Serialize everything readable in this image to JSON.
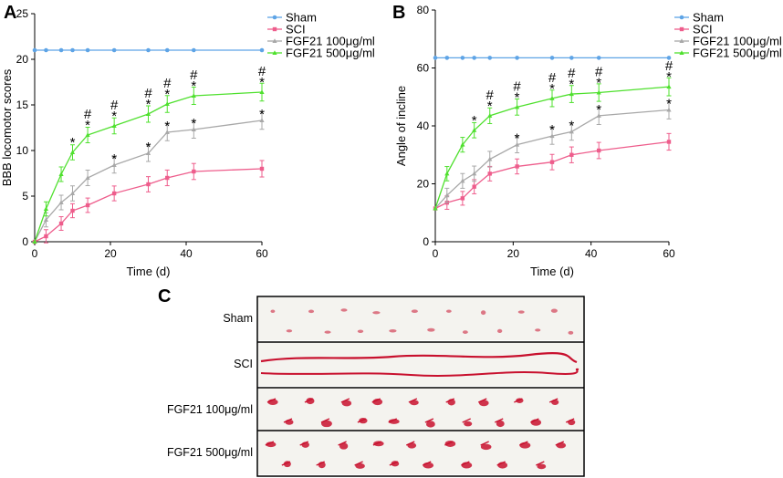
{
  "chart_data": [
    {
      "type": "line",
      "panel": "A",
      "ylabel": "BBB locomotor scores",
      "xlabel": "Time (d)",
      "xlim": [
        0,
        60
      ],
      "ylim": [
        0,
        25
      ],
      "xticks": [
        0,
        20,
        40,
        60
      ],
      "yticks": [
        0,
        5,
        10,
        15,
        20,
        25
      ],
      "legend": [
        "Sham",
        "SCI",
        "FGF21 100μg/ml",
        "FGF21 500μg/ml"
      ],
      "x": [
        0,
        3,
        7,
        10,
        14,
        21,
        30,
        35,
        42,
        60
      ],
      "series": [
        {
          "name": "Sham",
          "color": "#5ea4e6",
          "values": [
            21,
            21,
            21,
            21,
            21,
            21,
            21,
            21,
            21,
            21
          ]
        },
        {
          "name": "SCI",
          "color": "#ee5d8c",
          "values": [
            0,
            0.6,
            2.0,
            3.4,
            4.0,
            5.3,
            6.3,
            7.0,
            7.7,
            8.0
          ]
        },
        {
          "name": "FGF21 100μg/ml",
          "color": "#a8a8a8",
          "values": [
            0,
            2.4,
            4.3,
            5.3,
            7.0,
            8.4,
            9.7,
            12.0,
            12.3,
            13.3
          ]
        },
        {
          "name": "FGF21 500μg/ml",
          "color": "#4fe02e",
          "values": [
            0,
            3.6,
            7.4,
            9.8,
            11.7,
            12.7,
            14.0,
            15.1,
            16.0,
            16.4
          ]
        }
      ],
      "annotations": [
        {
          "x": 10,
          "labels": [
            "*"
          ]
        },
        {
          "x": 14,
          "labels": [
            "#",
            "*"
          ]
        },
        {
          "x": 21,
          "labels": [
            "#",
            "*"
          ],
          "low_labels": [
            "*"
          ]
        },
        {
          "x": 30,
          "labels": [
            "#",
            "*"
          ],
          "low_labels": [
            "*"
          ]
        },
        {
          "x": 35,
          "labels": [
            "#",
            "*"
          ],
          "low_labels": [
            "*"
          ]
        },
        {
          "x": 42,
          "labels": [
            "#",
            "*"
          ],
          "low_labels": [
            "*"
          ]
        },
        {
          "x": 60,
          "labels": [
            "#",
            "*"
          ],
          "low_labels": [
            "*"
          ]
        }
      ]
    },
    {
      "type": "line",
      "panel": "B",
      "ylabel": "Angle of incline",
      "xlabel": "Time (d)",
      "xlim": [
        0,
        60
      ],
      "ylim": [
        0,
        80
      ],
      "xticks": [
        0,
        20,
        40,
        60
      ],
      "yticks": [
        0,
        20,
        40,
        60,
        80
      ],
      "legend": [
        "Sham",
        "SCI",
        "FGF21 100μg/ml",
        "FGF21 500μg/ml"
      ],
      "x": [
        0,
        3,
        7,
        10,
        14,
        21,
        30,
        35,
        42,
        60
      ],
      "series": [
        {
          "name": "Sham",
          "color": "#5ea4e6",
          "values": [
            63.5,
            63.5,
            63.5,
            63.5,
            63.5,
            63.5,
            63.5,
            63.5,
            63.5,
            63.5
          ]
        },
        {
          "name": "SCI",
          "color": "#ee5d8c",
          "values": [
            11.5,
            13.5,
            15.0,
            19.0,
            23.5,
            26.0,
            27.5,
            30.0,
            31.5,
            34.5
          ]
        },
        {
          "name": "FGF21 100μg/ml",
          "color": "#a8a8a8",
          "values": [
            11.5,
            16.0,
            21.0,
            23.5,
            28.5,
            33.5,
            36.5,
            38.0,
            43.5,
            45.5
          ]
        },
        {
          "name": "FGF21 500μg/ml",
          "color": "#4fe02e",
          "values": [
            11.5,
            23.5,
            33.5,
            38.5,
            43.5,
            46.5,
            49.5,
            51.0,
            51.5,
            53.5
          ]
        }
      ],
      "annotations": [
        {
          "x": 10,
          "labels": [
            "*"
          ]
        },
        {
          "x": 14,
          "labels": [
            "#",
            "*"
          ]
        },
        {
          "x": 21,
          "labels": [
            "#",
            "*"
          ],
          "low_labels": [
            "*"
          ]
        },
        {
          "x": 30,
          "labels": [
            "#",
            "*"
          ],
          "low_labels": [
            "*"
          ]
        },
        {
          "x": 35,
          "labels": [
            "#",
            "*"
          ],
          "low_labels": [
            "*"
          ]
        },
        {
          "x": 42,
          "labels": [
            "#",
            "*"
          ],
          "low_labels": [
            "*"
          ]
        },
        {
          "x": 60,
          "labels": [
            "#",
            "*"
          ],
          "low_labels": [
            "*"
          ]
        }
      ]
    }
  ],
  "panel_c": {
    "letter": "C",
    "rows": [
      {
        "label": "Sham"
      },
      {
        "label": "SCI"
      },
      {
        "label": "FGF21 100μg/ml"
      },
      {
        "label": "FGF21 500μg/ml"
      }
    ],
    "ink_color": "#c8102e"
  }
}
